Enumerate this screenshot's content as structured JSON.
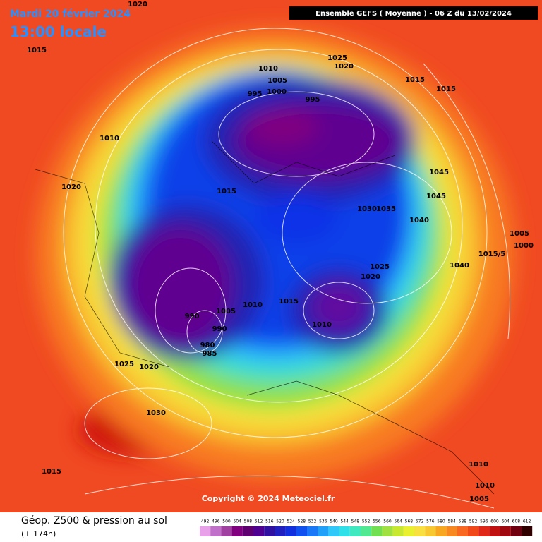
{
  "header": {
    "date": "Mardi 20 février 2024",
    "time": "13:00 locale",
    "run": "Ensemble GEFS  ( Moyenne )  -  06 Z du 13/02/2024"
  },
  "isobar_labels": [
    "1020",
    "1015",
    "1025",
    "1020",
    "1010",
    "1005",
    "1015",
    "1015",
    "995",
    "1000",
    "995",
    "1010",
    "1045",
    "1020",
    "1015",
    "1045",
    "1030",
    "1035",
    "1040",
    "1005",
    "1000",
    "1015/5",
    "1025",
    "1040",
    "1020",
    "1015",
    "1010",
    "1010",
    "1005",
    "990",
    "990",
    "980",
    "985",
    "1025",
    "1020",
    "1030",
    "1015",
    "1010",
    "1010",
    "1005"
  ],
  "copyright": "Copyright © 2024 Meteociel.fr",
  "footer": {
    "title": "Géop. Z500 & pression au sol",
    "lead": "(+ 174h)"
  },
  "colorbar": {
    "ticks": [
      492,
      496,
      500,
      504,
      508,
      512,
      516,
      520,
      524,
      528,
      532,
      536,
      540,
      544,
      548,
      552,
      556,
      560,
      564,
      568,
      572,
      576,
      580,
      584,
      588,
      592,
      596,
      600,
      604,
      608,
      612
    ],
    "colors": [
      "#e8a0e8",
      "#c070c8",
      "#a040a0",
      "#800080",
      "#600070",
      "#500090",
      "#3010a0",
      "#2020c0",
      "#1030e0",
      "#1050f0",
      "#1878f8",
      "#20a0f8",
      "#30c8f8",
      "#30e0e8",
      "#40e8c0",
      "#50e890",
      "#70e050",
      "#a0e040",
      "#c8e830",
      "#e8f030",
      "#f8e040",
      "#f8c830",
      "#f8a820",
      "#f88820",
      "#f86820",
      "#f04818",
      "#e02818",
      "#c01010",
      "#a00810",
      "#700010",
      "#300000"
    ]
  }
}
